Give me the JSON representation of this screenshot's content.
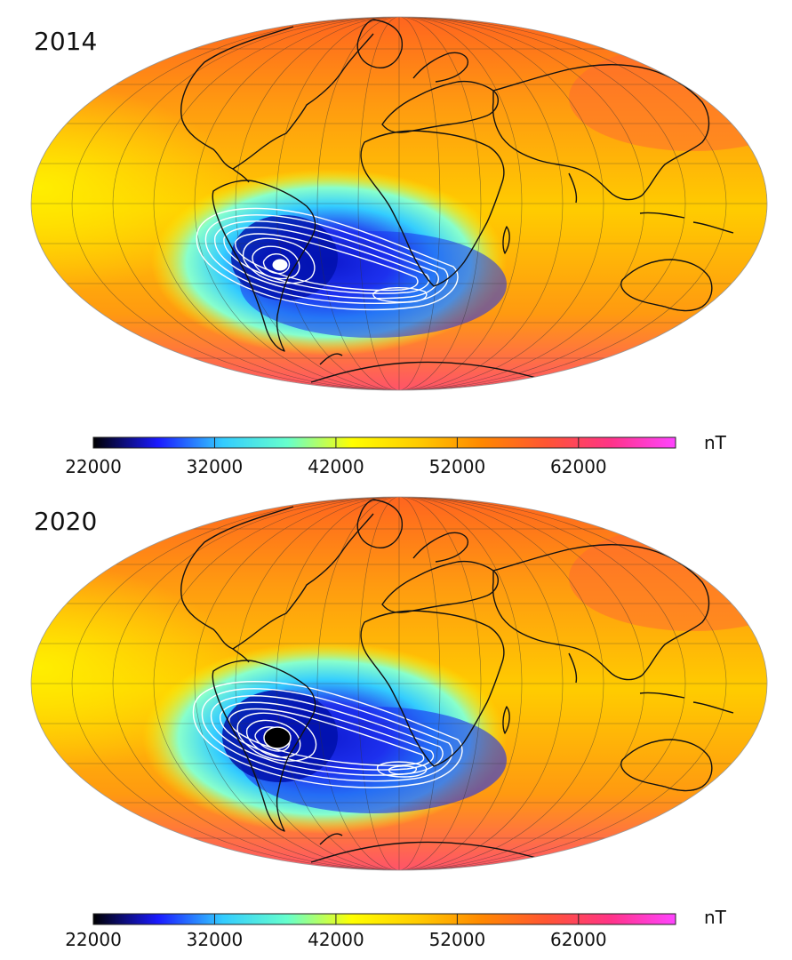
{
  "panels": [
    {
      "year": "2014",
      "anomaly_min_center": {
        "lon": -57,
        "lat": -26
      },
      "anomaly_secondary_center": {
        "lon": 0,
        "lat": -40
      }
    },
    {
      "year": "2020",
      "anomaly_min_center": {
        "lon": -60,
        "lat": -25
      },
      "anomaly_secondary_center": {
        "lon": 0,
        "lat": -38
      }
    }
  ],
  "colorbar": {
    "unit": "nT",
    "min": 22000,
    "max": 70000,
    "ticks": [
      "22000",
      "32000",
      "42000",
      "52000",
      "62000"
    ],
    "colors": [
      "#000000",
      "#1a1aff",
      "#33ccff",
      "#66ffcc",
      "#ffff00",
      "#ffcc00",
      "#ff8800",
      "#ff5533",
      "#ff3388",
      "#ff44ff"
    ]
  },
  "projection": "Mollweide",
  "field": "total magnetic field intensity"
}
